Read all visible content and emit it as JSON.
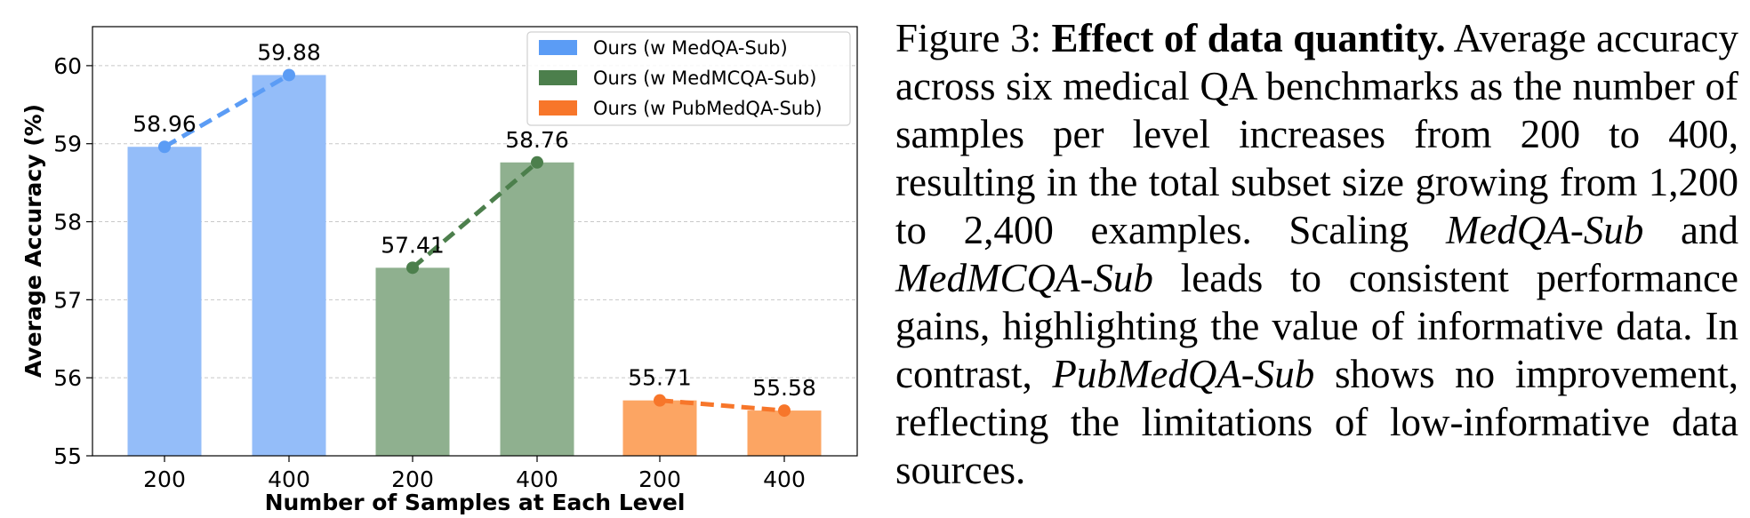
{
  "chart_data": {
    "type": "bar",
    "xlabel": "Number of Samples at Each Level",
    "ylabel": "Average Accuracy (%)",
    "ylim": [
      55,
      60.5
    ],
    "yticks": [
      55,
      56,
      57,
      58,
      59,
      60
    ],
    "grid": true,
    "legend_position": "top-right",
    "categories": [
      "200",
      "400",
      "200",
      "400",
      "200",
      "400"
    ],
    "series": [
      {
        "name": "Ours (w MedQA-Sub)",
        "x": [
          "200",
          "400"
        ],
        "values": [
          58.96,
          59.88
        ],
        "color": "#94bdf9",
        "line_color": "#5b9cf5"
      },
      {
        "name": "Ours (w MedMCQA-Sub)",
        "x": [
          "200",
          "400"
        ],
        "values": [
          57.41,
          58.76
        ],
        "color": "#8fb08f",
        "line_color": "#4c7f4c"
      },
      {
        "name": "Ours (w PubMedQA-Sub)",
        "x": [
          "200",
          "400"
        ],
        "values": [
          55.71,
          55.58
        ],
        "color": "#fca563",
        "line_color": "#f7762a"
      }
    ],
    "data_labels": [
      "58.96",
      "59.88",
      "57.41",
      "58.76",
      "55.71",
      "55.58"
    ]
  },
  "caption": {
    "label": "Figure 3:",
    "title": "Effect of data quantity.",
    "text1": "Average accuracy across six medical QA benchmarks as the number of samples per level increases from 200 to 400, resulting in the total subset size growing from 1,200 to 2,400 examples. Scaling",
    "italic1": "MedQA-Sub",
    "text2": "and",
    "italic2": "MedMCQA-Sub",
    "text3": "leads to consistent performance gains, highlighting the value of informative data. In contrast,",
    "italic3": "PubMedQA-Sub",
    "text4": "shows no improvement, reflecting the limitations of low-informative data sources."
  }
}
